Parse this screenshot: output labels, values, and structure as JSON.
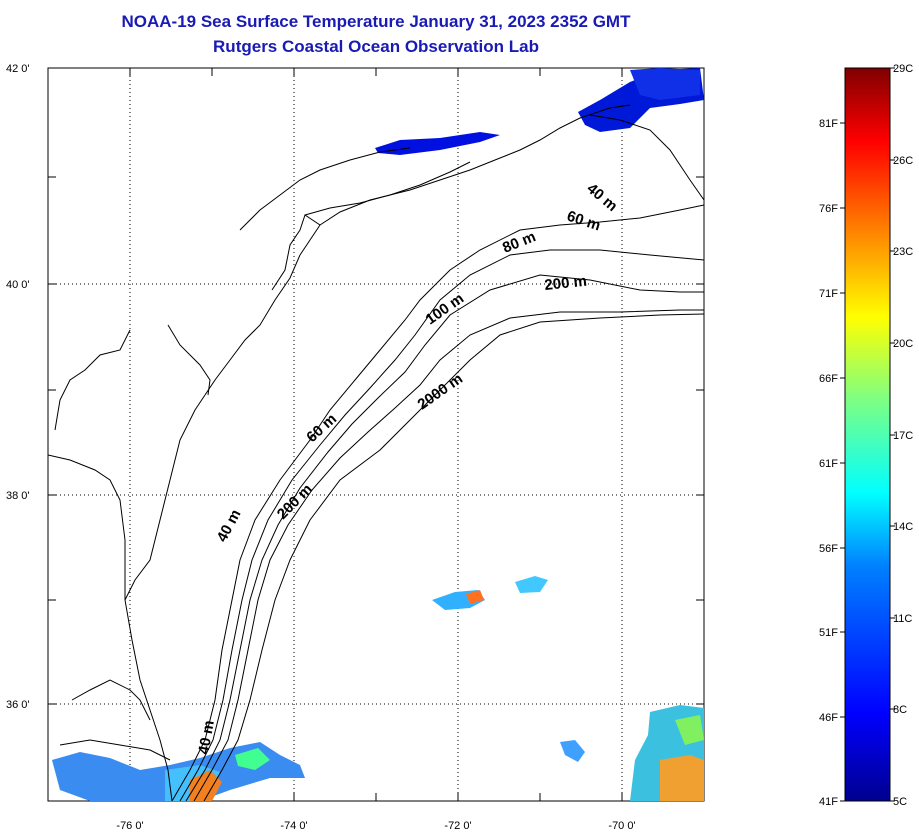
{
  "header": {
    "title": "NOAA-19 Sea Surface Temperature January 31, 2023 2352 GMT",
    "subtitle": "Rutgers Coastal Ocean Observation Lab"
  },
  "map": {
    "lat_ticks": [
      "42 0'",
      "40 0'",
      "38 0'",
      "36 0'"
    ],
    "lon_ticks": [
      "-76 0'",
      "-74 0'",
      "-72 0'",
      "-70 0'"
    ],
    "depth_labels": [
      "40 m",
      "60 m",
      "80 m",
      "200 m",
      "100 m",
      "2000 m",
      "60 m",
      "200 m",
      "40 m",
      "40 m"
    ]
  },
  "colorbar": {
    "celsius_labels": [
      "29C",
      "26C",
      "23C",
      "20C",
      "17C",
      "14C",
      "11C",
      "8C",
      "5C"
    ],
    "fahrenheit_labels": [
      "81F",
      "76F",
      "71F",
      "66F",
      "61F",
      "56F",
      "51F",
      "46F",
      "41F"
    ],
    "colors": [
      "#00008f",
      "#0000ff",
      "#0080ff",
      "#00ffff",
      "#80ff80",
      "#ffff00",
      "#ff8000",
      "#ff0000",
      "#800000"
    ]
  }
}
